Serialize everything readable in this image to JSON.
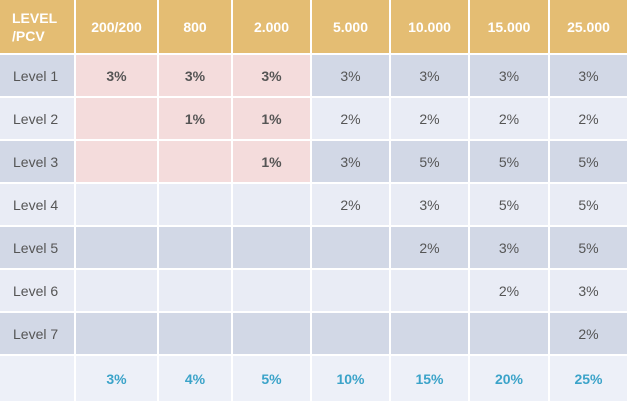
{
  "table": {
    "corner_line1": "LEVEL",
    "corner_line2": "/PCV",
    "headers": [
      "200/200",
      "800",
      "2.000",
      "5.000",
      "10.000",
      "15.000",
      "25.000"
    ],
    "rows": [
      {
        "label": "Level 1",
        "cells": [
          "3%",
          "3%",
          "3%",
          "3%",
          "3%",
          "3%",
          "3%"
        ]
      },
      {
        "label": "Level 2",
        "cells": [
          "",
          "1%",
          "1%",
          "2%",
          "2%",
          "2%",
          "2%"
        ]
      },
      {
        "label": "Level 3",
        "cells": [
          "",
          "",
          "1%",
          "3%",
          "5%",
          "5%",
          "5%"
        ]
      },
      {
        "label": "Level 4",
        "cells": [
          "",
          "",
          "",
          "2%",
          "3%",
          "5%",
          "5%"
        ]
      },
      {
        "label": "Level 5",
        "cells": [
          "",
          "",
          "",
          "",
          "2%",
          "3%",
          "5%"
        ]
      },
      {
        "label": "Level 6",
        "cells": [
          "",
          "",
          "",
          "",
          "",
          "2%",
          "3%"
        ]
      },
      {
        "label": "Level 7",
        "cells": [
          "",
          "",
          "",
          "",
          "",
          "",
          "2%"
        ]
      }
    ],
    "totals": [
      "3%",
      "4%",
      "5%",
      "10%",
      "15%",
      "20%",
      "25%"
    ]
  },
  "colors": {
    "header": "#e4bd73",
    "row_blue": "#d2d8e6",
    "row_light": "#e9ecf5",
    "highlight_pink": "#f4dcdc",
    "total_text": "#3ba3c9"
  }
}
